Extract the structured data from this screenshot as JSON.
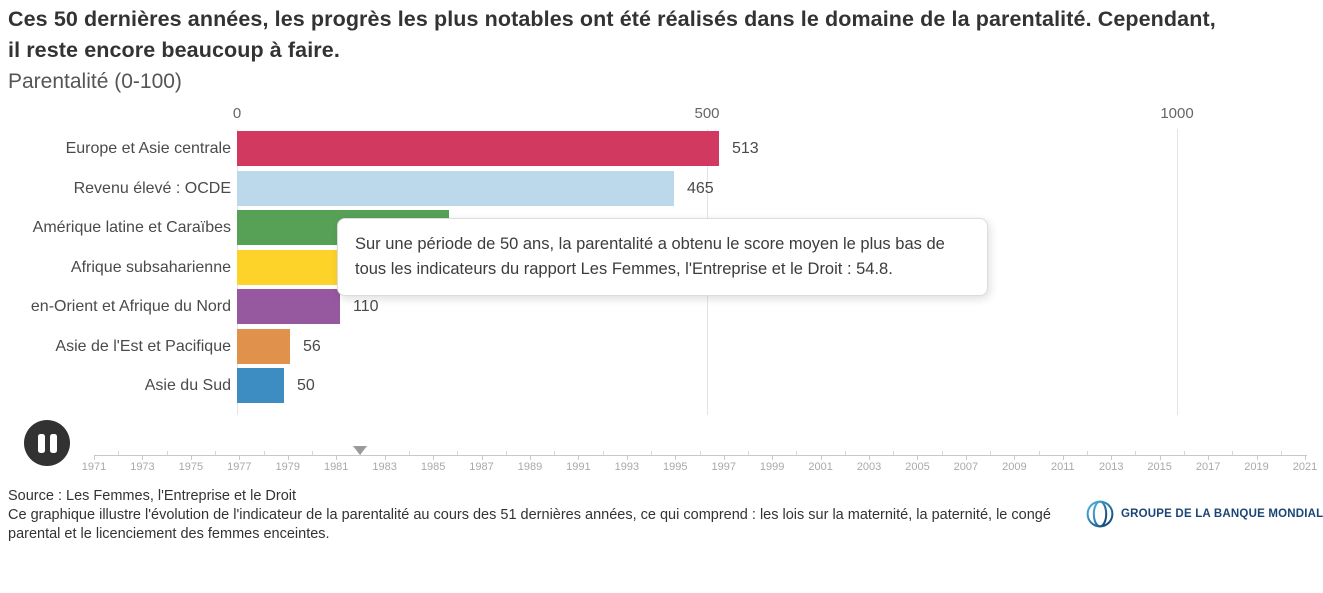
{
  "page": {
    "title_lines": [
      "Ces 50 dernières années, les progrès les plus notables ont été réalisés dans le domaine de la parentalité. Cependant,",
      "il reste encore beaucoup à faire."
    ],
    "subtitle": "Parentalité (0-100)"
  },
  "chart_data": {
    "type": "bar",
    "orientation": "horizontal",
    "title": "Parentalité (0-100)",
    "xlim": [
      0,
      1000
    ],
    "x_ticks": [
      0,
      500,
      1000
    ],
    "grid": true,
    "bars": [
      {
        "category": "Europe et Asie centrale",
        "value": 513,
        "value_label": "513",
        "color": "#d23960"
      },
      {
        "category": "Revenu élevé : OCDE",
        "value": 465,
        "value_label": "465",
        "color": "#bcd9ec"
      },
      {
        "category": "Amérique latine et Caraïbes",
        "value": 225,
        "value_label": "",
        "color": "#56a156",
        "value_hidden_by_tooltip": true
      },
      {
        "category": "Afrique subsaharienne",
        "value": 170,
        "value_label": "",
        "color": "#fdd32a",
        "value_hidden_by_tooltip": true
      },
      {
        "category": "en-Orient et Afrique du Nord",
        "value": 110,
        "value_label": "110",
        "color": "#96589e"
      },
      {
        "category": "Asie de l'Est et Pacifique",
        "value": 56,
        "value_label": "56",
        "color": "#e0924d"
      },
      {
        "category": "Asie du Sud",
        "value": 50,
        "value_label": "50",
        "color": "#3d8dc3"
      }
    ]
  },
  "tooltip": {
    "text": "Sur une période de 50 ans, la parentalité a obtenu le score moyen le plus bas de tous les indicateurs du rapport Les Femmes, l'Entreprise et le Droit : 54.8."
  },
  "timeline": {
    "start_year": 1971,
    "end_year": 2021,
    "labeled_years": [
      1971,
      1973,
      1975,
      1977,
      1979,
      1981,
      1983,
      1985,
      1987,
      1989,
      1991,
      1993,
      1995,
      1997,
      1999,
      2001,
      2003,
      2005,
      2007,
      2009,
      2011,
      2013,
      2015,
      2017,
      2019,
      2021
    ],
    "current_year": 1982
  },
  "controls": {
    "play_state_icon": "pause-icon"
  },
  "footer": {
    "source": "Source : Les Femmes, l'Entreprise et le Droit",
    "description": "Ce graphique illustre l'évolution de l'indicateur de la parentalité au cours des 51 dernières années, ce qui comprend : les lois sur la maternité, la paternité, le congé parental et le licenciement des femmes enceintes.",
    "logo": {
      "text": "GROUPE DE LA BANQUE MONDIALE",
      "color": "#1b4577",
      "icon": "world-bank-globe-icon"
    }
  }
}
